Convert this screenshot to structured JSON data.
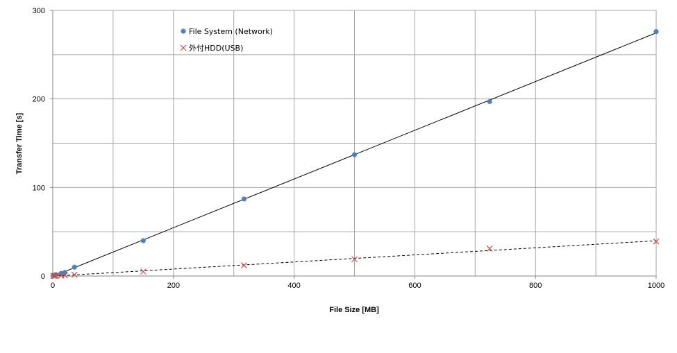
{
  "chart_data": {
    "type": "scatter",
    "xlabel": "File Size  [MB]",
    "ylabel": "Transfer Time [s]",
    "xlim": [
      0,
      1000
    ],
    "ylim": [
      0,
      300
    ],
    "xticks": [
      "0",
      "200",
      "400",
      "600",
      "800",
      "1000"
    ],
    "yticks": [
      "0",
      "100",
      "200",
      "300"
    ],
    "grid": true,
    "legend_position": "top-left",
    "series": [
      {
        "name": "File System (Network)",
        "marker": "circle",
        "color": "#4f81bd",
        "trendline": "solid",
        "trend_color": "#000000",
        "x": [
          1,
          3,
          5,
          14,
          20,
          36,
          150,
          317,
          500,
          724,
          1000
        ],
        "y": [
          0.5,
          1,
          1.5,
          3,
          4,
          10,
          40,
          87,
          137,
          197,
          276
        ]
      },
      {
        "name": "外付HDD(USB)",
        "marker": "x",
        "color": "#c0504d",
        "trendline": "dashed",
        "trend_color": "#000000",
        "x": [
          1,
          3,
          5,
          14,
          20,
          36,
          150,
          317,
          500,
          724,
          1000
        ],
        "y": [
          0.1,
          0.2,
          0.2,
          0.5,
          0.8,
          1.5,
          5,
          12,
          19,
          31,
          39
        ]
      }
    ]
  }
}
